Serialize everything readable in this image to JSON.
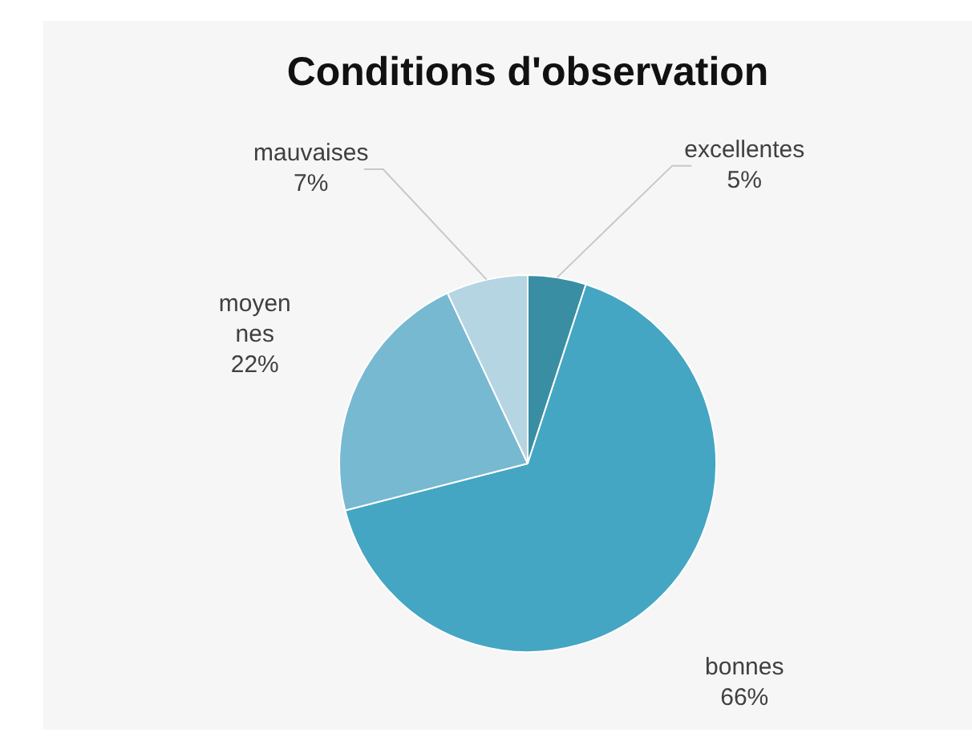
{
  "chart_data": {
    "type": "pie",
    "title": "Conditions d'observation",
    "categories": [
      "excellentes",
      "bonnes",
      "moyennes",
      "mauvaises"
    ],
    "values": [
      5,
      66,
      22,
      7
    ],
    "value_labels": [
      "5%",
      "66%",
      "22%",
      "7%"
    ],
    "colors": [
      "#3a8ea3",
      "#44a6c2",
      "#77b9d0",
      "#b5d5e2"
    ],
    "legend": false
  }
}
